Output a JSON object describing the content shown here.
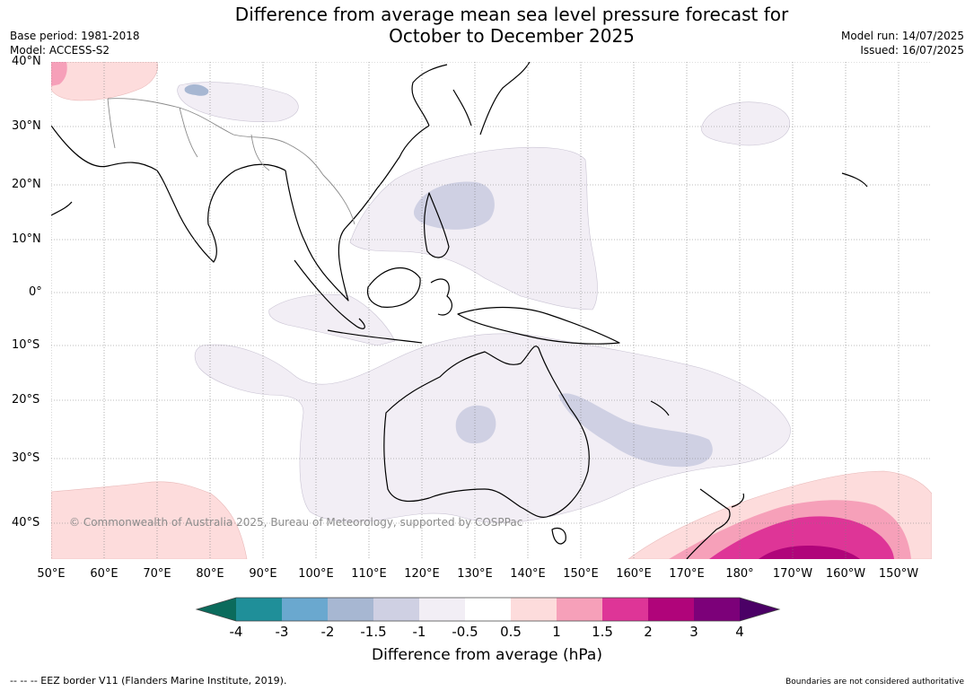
{
  "header": {
    "title_line1": "Difference from average mean sea level pressure forecast for",
    "title_line2": "October to December 2025",
    "base_period": "Base period: 1981-2018",
    "model": "Model: ACCESS-S2",
    "model_run": "Model run: 14/07/2025",
    "issued": "Issued: 16/07/2025"
  },
  "map": {
    "lat_labels": [
      "40°N",
      "30°N",
      "20°N",
      "10°N",
      "0°",
      "10°S",
      "20°S",
      "30°S",
      "40°S"
    ],
    "lon_labels": [
      "50°E",
      "60°E",
      "70°E",
      "80°E",
      "90°E",
      "100°E",
      "110°E",
      "120°E",
      "130°E",
      "140°E",
      "150°E",
      "160°E",
      "170°E",
      "180°",
      "170°W",
      "160°W",
      "150°W"
    ],
    "copyright": "© Commonwealth of Australia 2025, Bureau of Meteorology, supported by COSPPac"
  },
  "colorbar": {
    "ticks": [
      "-4",
      "-3",
      "-2",
      "-1.5",
      "-1",
      "-0.5",
      "0.5",
      "1",
      "1.5",
      "2",
      "3",
      "4"
    ],
    "colors": [
      "#0b6b5c",
      "#1f8f99",
      "#6aa8cf",
      "#a7b7d2",
      "#cfd0e3",
      "#f2eef5",
      "#ffffff",
      "#fddcdc",
      "#f6a0b9",
      "#de3597",
      "#b0047a",
      "#7c0179",
      "#4b0166"
    ],
    "label": "Difference from average (hPa)"
  },
  "footer": {
    "eez": "--  --  -- EEZ border V11 (Flanders Marine Institute, 2019).",
    "boundaries": "Boundaries are not considered authoritative"
  }
}
